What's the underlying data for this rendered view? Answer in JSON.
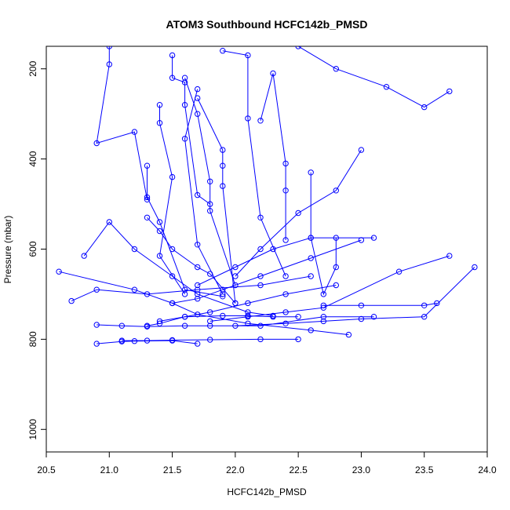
{
  "chart_data": {
    "type": "line",
    "title": "ATOM3 Southbound HCFC142b_PMSD",
    "xlabel": "HCFC142b_PMSD",
    "ylabel": "Pressure (mbar)",
    "xlim": [
      20.5,
      24.0
    ],
    "ylim": [
      1050,
      150
    ],
    "y_inverted": true,
    "x_ticks": [
      "20.5",
      "21.0",
      "21.5",
      "22.0",
      "22.5",
      "23.0",
      "23.5",
      "24.0"
    ],
    "y_ticks": [
      "200",
      "400",
      "600",
      "800",
      "1000"
    ],
    "series_color": "#0000ff",
    "marker": "open-circle",
    "grid": false,
    "series": [
      {
        "x": [
          21.0,
          21.0,
          20.9,
          21.2,
          21.3
        ],
        "y": [
          150,
          190,
          365,
          340,
          490
        ]
      },
      {
        "x": [
          21.5,
          21.5,
          21.6,
          21.6,
          21.7,
          21.8
        ],
        "y": [
          170,
          220,
          230,
          280,
          480,
          500
        ]
      },
      {
        "x": [
          21.4,
          21.4,
          21.5,
          21.4,
          21.6
        ],
        "y": [
          280,
          320,
          440,
          615,
          700
        ]
      },
      {
        "x": [
          21.7,
          21.6,
          21.7,
          21.9
        ],
        "y": [
          245,
          355,
          590,
          700
        ]
      },
      {
        "x": [
          21.3,
          21.3,
          21.4,
          21.6,
          21.9
        ],
        "y": [
          415,
          485,
          540,
          690,
          705
        ]
      },
      {
        "x": [
          20.8,
          21.0,
          21.2,
          21.5,
          21.7,
          22.1,
          22.3
        ],
        "y": [
          615,
          540,
          600,
          660,
          700,
          740,
          748
        ]
      },
      {
        "x": [
          20.6,
          21.2,
          21.5,
          21.7,
          22.1,
          22.6,
          22.9
        ],
        "y": [
          650,
          690,
          720,
          745,
          765,
          780,
          790
        ]
      },
      {
        "x": [
          20.7,
          20.9,
          21.3,
          21.7,
          22.2,
          22.6
        ],
        "y": [
          715,
          690,
          700,
          690,
          680,
          660
        ]
      },
      {
        "x": [
          20.9,
          21.1,
          21.3,
          21.6,
          21.8,
          22.2,
          22.7,
          23.1
        ],
        "y": [
          768,
          770,
          772,
          770,
          770,
          770,
          750,
          750
        ]
      },
      {
        "x": [
          20.9,
          21.1,
          21.2,
          21.5,
          21.7
        ],
        "y": [
          810,
          805,
          804,
          803,
          810
        ]
      },
      {
        "x": [
          21.1,
          21.3,
          21.5,
          21.8,
          22.2,
          22.5
        ],
        "y": [
          803,
          803,
          802,
          801,
          800,
          800
        ]
      },
      {
        "x": [
          21.3,
          21.4,
          21.6,
          21.9,
          22.1,
          22.3,
          22.5
        ],
        "y": [
          770,
          765,
          750,
          748,
          748,
          750,
          750
        ]
      },
      {
        "x": [
          21.4,
          21.6,
          21.8,
          22.1,
          22.4,
          22.8
        ],
        "y": [
          760,
          750,
          740,
          720,
          700,
          680
        ]
      },
      {
        "x": [
          21.5,
          21.7,
          21.9,
          22.2,
          22.6,
          23.0
        ],
        "y": [
          720,
          710,
          690,
          660,
          620,
          580
        ]
      },
      {
        "x": [
          21.7,
          22.0,
          22.3,
          22.6,
          23.1
        ],
        "y": [
          680,
          640,
          600,
          575,
          575
        ]
      },
      {
        "x": [
          21.8,
          22.1,
          22.4,
          22.7,
          23.3,
          23.7
        ],
        "y": [
          760,
          750,
          740,
          730,
          650,
          615
        ]
      },
      {
        "x": [
          22.0,
          22.4,
          22.7,
          23.0,
          23.5,
          23.9
        ],
        "y": [
          770,
          765,
          760,
          755,
          750,
          640
        ]
      },
      {
        "x": [
          22.7,
          23.0,
          23.5,
          23.6
        ],
        "y": [
          725,
          725,
          725,
          720
        ]
      },
      {
        "x": [
          22.5,
          22.8,
          23.2,
          23.5,
          23.7
        ],
        "y": [
          150,
          200,
          240,
          285,
          250
        ]
      },
      {
        "x": [
          22.2,
          22.3,
          22.4,
          22.4,
          22.4
        ],
        "y": [
          315,
          210,
          410,
          470,
          580
        ]
      },
      {
        "x": [
          22.6,
          22.6,
          22.7,
          22.8,
          22.8
        ],
        "y": [
          430,
          575,
          700,
          640,
          575
        ]
      },
      {
        "x": [
          22.0,
          22.2,
          22.5,
          22.8,
          23.0
        ],
        "y": [
          660,
          600,
          520,
          470,
          380
        ]
      },
      {
        "x": [
          21.9,
          22.1,
          22.1,
          22.2,
          22.4
        ],
        "y": [
          160,
          170,
          310,
          530,
          660
        ]
      },
      {
        "x": [
          21.7,
          21.9,
          21.9,
          21.9,
          22.0
        ],
        "y": [
          265,
          380,
          415,
          460,
          720
        ]
      },
      {
        "x": [
          21.6,
          21.7,
          21.8,
          21.8,
          22.0
        ],
        "y": [
          220,
          300,
          450,
          515,
          680
        ]
      },
      {
        "x": [
          21.3,
          21.4,
          21.5,
          21.7,
          21.8,
          22.0
        ],
        "y": [
          530,
          560,
          600,
          640,
          655,
          720
        ]
      }
    ]
  }
}
